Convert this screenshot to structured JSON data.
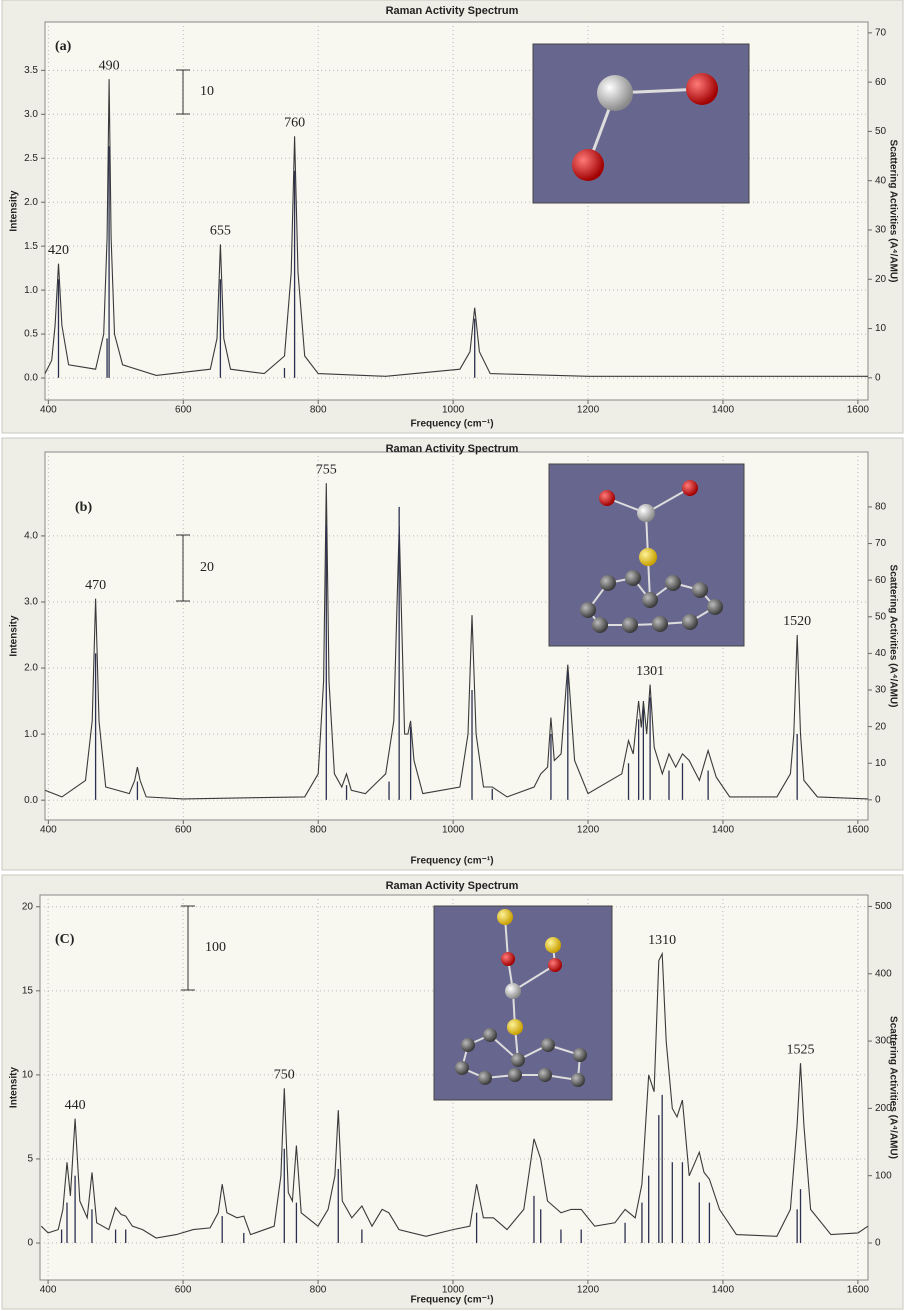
{
  "chart_data": [
    {
      "type": "line",
      "title": "Raman Activity Spectrum",
      "panel_label": "(a)",
      "scale_bar_label": "10",
      "x_label": "Frequency (cm⁻¹)",
      "y_label": "Intensity",
      "y2_label": "Scattering Activities (A⁴/AMU)",
      "xlim": [
        395,
        1615
      ],
      "ylim": [
        -0.25,
        4.05
      ],
      "y2lim": [
        -4.5,
        72.2
      ],
      "xticks": [
        400,
        600,
        800,
        1000,
        1200,
        1400,
        1600
      ],
      "yticks": [
        {
          "value": 0,
          "label": "0.0"
        },
        {
          "value": 0.5,
          "label": "0.5"
        },
        {
          "value": 1,
          "label": "1.0"
        },
        {
          "value": 1.5,
          "label": "1.5"
        },
        {
          "value": 2,
          "label": "2.0"
        },
        {
          "value": 2.5,
          "label": "2.5"
        },
        {
          "value": 3,
          "label": "3.0"
        },
        {
          "value": 3.5,
          "label": "3.5"
        }
      ],
      "y2ticks": [
        0,
        10,
        20,
        30,
        40,
        50,
        60,
        70
      ],
      "grid": true,
      "series": [
        {
          "type": "line",
          "color": "#3a3a3a",
          "x": [
            395,
            405,
            410,
            415,
            420,
            430,
            470,
            482,
            487,
            490,
            493,
            498,
            510,
            560,
            640,
            650,
            655,
            660,
            670,
            720,
            750,
            760,
            765,
            770,
            780,
            800,
            900,
            1010,
            1025,
            1032,
            1039,
            1055,
            1200,
            1400,
            1615
          ],
          "values": [
            0.05,
            0.2,
            0.6,
            1.3,
            0.6,
            0.15,
            0.1,
            0.5,
            1.6,
            3.4,
            1.6,
            0.5,
            0.15,
            0.03,
            0.1,
            0.45,
            1.52,
            0.45,
            0.1,
            0.05,
            0.25,
            1.2,
            2.75,
            1.2,
            0.25,
            0.05,
            0.02,
            0.1,
            0.3,
            0.8,
            0.3,
            0.05,
            0.02,
            0.02,
            0.02
          ]
        },
        {
          "type": "stick",
          "axis": "y2",
          "color": "#2b3050",
          "x": [
            415,
            487,
            490,
            655,
            750,
            765,
            1032
          ],
          "values": [
            20,
            8,
            47,
            20,
            2,
            42,
            12
          ]
        }
      ],
      "annotations": [
        {
          "text": "420",
          "x": 415,
          "y": 1.3
        },
        {
          "text": "490",
          "x": 490,
          "y": 3.4
        },
        {
          "text": "655",
          "x": 655,
          "y": 1.52
        },
        {
          "text": "760",
          "x": 765,
          "y": 2.75
        }
      ]
    },
    {
      "type": "line",
      "title": "Raman Activity Spectrum",
      "panel_label": "(b)",
      "scale_bar_label": "20",
      "x_label": "Frequency (cm⁻¹)",
      "y_label": "Intensity",
      "y2_label": "Scattering Activities (A⁴/AMU)",
      "xlim": [
        395,
        1615
      ],
      "ylim": [
        -0.3,
        5.27
      ],
      "y2lim": [
        -5.5,
        95
      ],
      "xticks": [
        400,
        600,
        800,
        1000,
        1200,
        1400,
        1600
      ],
      "yticks": [
        {
          "value": 0,
          "label": "0.0"
        },
        {
          "value": 1,
          "label": "1.0"
        },
        {
          "value": 2,
          "label": "2.0"
        },
        {
          "value": 3,
          "label": "3.0"
        },
        {
          "value": 4,
          "label": "4.0"
        }
      ],
      "y2ticks": [
        0,
        10,
        20,
        30,
        40,
        50,
        60,
        70,
        80
      ],
      "grid": true,
      "series": [
        {
          "type": "line",
          "color": "#3a3a3a",
          "x": [
            395,
            420,
            455,
            465,
            470,
            475,
            485,
            520,
            528,
            532,
            536,
            545,
            600,
            780,
            800,
            808,
            812,
            816,
            824,
            835,
            842,
            849,
            870,
            900,
            912,
            920,
            928,
            933,
            937,
            942,
            955,
            1010,
            1022,
            1028,
            1034,
            1045,
            1058,
            1080,
            1120,
            1130,
            1140,
            1145,
            1150,
            1160,
            1170,
            1180,
            1200,
            1250,
            1260,
            1267,
            1275,
            1279,
            1282,
            1287,
            1292,
            1298,
            1310,
            1320,
            1330,
            1340,
            1350,
            1365,
            1378,
            1390,
            1410,
            1480,
            1500,
            1505,
            1510,
            1515,
            1520,
            1540,
            1615
          ],
          "values": [
            0.15,
            0.05,
            0.3,
            1.2,
            3.05,
            1.2,
            0.2,
            0.1,
            0.3,
            0.5,
            0.3,
            0.05,
            0.02,
            0.05,
            0.4,
            1.8,
            4.8,
            1.8,
            0.4,
            0.2,
            0.4,
            0.15,
            0.1,
            0.4,
            1.2,
            4.15,
            1.0,
            1.0,
            1.2,
            0.6,
            0.1,
            0.2,
            1.0,
            2.8,
            1.0,
            0.2,
            0.2,
            0.05,
            0.2,
            0.4,
            0.5,
            1.25,
            0.6,
            0.7,
            2.05,
            0.6,
            0.1,
            0.4,
            0.9,
            0.7,
            1.5,
            1.1,
            1.5,
            1.0,
            1.75,
            0.8,
            0.4,
            0.7,
            0.5,
            0.7,
            0.6,
            0.3,
            0.75,
            0.35,
            0.05,
            0.05,
            0.4,
            1.0,
            2.5,
            1.0,
            0.3,
            0.05,
            0.02
          ]
        },
        {
          "type": "stick",
          "axis": "y2",
          "color": "#2b3050",
          "x": [
            470,
            532,
            812,
            842,
            905,
            920,
            937,
            1028,
            1058,
            1145,
            1170,
            1260,
            1275,
            1282,
            1292,
            1320,
            1340,
            1378,
            1510
          ],
          "values": [
            40,
            5,
            75,
            4,
            5,
            80,
            20,
            30,
            3,
            18,
            35,
            10,
            22,
            25,
            28,
            8,
            10,
            8,
            18
          ]
        }
      ],
      "annotations": [
        {
          "text": "470",
          "x": 470,
          "y": 3.05
        },
        {
          "text": "755",
          "x": 812,
          "y": 4.8
        },
        {
          "text": "1301",
          "x": 1292,
          "y": 1.75
        },
        {
          "text": "1520",
          "x": 1510,
          "y": 2.5
        }
      ]
    },
    {
      "type": "line",
      "title": "Raman Activity Spectrum",
      "panel_label": "(C)",
      "scale_bar_label": "100",
      "x_label": "Frequency (cm⁻¹)",
      "y_label": "Intensity",
      "y2_label": "Scattering Activities (A⁴/AMU)",
      "xlim": [
        388,
        1615
      ],
      "ylim": [
        -2.2,
        20.7
      ],
      "y2lim": [
        -55,
        517
      ],
      "xticks": [
        400,
        600,
        800,
        1000,
        1200,
        1400,
        1600
      ],
      "yticks": [
        0,
        5,
        10,
        15,
        20
      ],
      "y2ticks": [
        0,
        100,
        200,
        300,
        400,
        500
      ],
      "grid": true,
      "series": [
        {
          "type": "line",
          "color": "#3a3a3a",
          "x": [
            390,
            400,
            415,
            422,
            428,
            433,
            440,
            447,
            458,
            465,
            472,
            490,
            500,
            508,
            515,
            525,
            540,
            560,
            590,
            615,
            640,
            652,
            658,
            665,
            680,
            690,
            700,
            735,
            745,
            750,
            756,
            762,
            768,
            775,
            800,
            815,
            825,
            830,
            836,
            850,
            865,
            880,
            895,
            905,
            920,
            960,
            1000,
            1025,
            1035,
            1045,
            1060,
            1080,
            1105,
            1120,
            1130,
            1140,
            1160,
            1175,
            1190,
            1210,
            1240,
            1255,
            1270,
            1280,
            1290,
            1298,
            1305,
            1310,
            1316,
            1325,
            1332,
            1340,
            1350,
            1365,
            1372,
            1380,
            1395,
            1420,
            1480,
            1500,
            1510,
            1515,
            1520,
            1530,
            1560,
            1600,
            1615
          ],
          "values": [
            1.0,
            0.6,
            0.8,
            2.0,
            4.8,
            2.8,
            7.4,
            2.5,
            1.5,
            4.2,
            1.2,
            0.8,
            2.1,
            1.7,
            1.6,
            1.0,
            0.8,
            0.3,
            0.5,
            0.8,
            0.9,
            1.8,
            3.5,
            1.8,
            1.5,
            1.6,
            0.5,
            1.0,
            4.0,
            9.2,
            3.0,
            2.5,
            5.8,
            1.8,
            1.0,
            2.0,
            4.0,
            7.9,
            2.5,
            1.5,
            2.2,
            1.0,
            2.0,
            1.8,
            0.8,
            0.4,
            0.8,
            1.0,
            3.5,
            1.5,
            1.5,
            0.8,
            2.0,
            6.2,
            5.0,
            2.5,
            1.8,
            2.0,
            2.0,
            1.0,
            1.2,
            2.0,
            1.5,
            3.5,
            10.0,
            9.0,
            16.8,
            17.2,
            12.0,
            8.0,
            7.5,
            8.5,
            4.0,
            5.4,
            4.2,
            3.8,
            2.0,
            0.5,
            0.4,
            2.0,
            7.0,
            10.7,
            7.0,
            2.0,
            0.5,
            0.6,
            1.0
          ]
        },
        {
          "type": "stick",
          "axis": "y2",
          "color": "#2b3050",
          "x": [
            420,
            428,
            440,
            465,
            500,
            515,
            658,
            690,
            750,
            768,
            830,
            865,
            1035,
            1120,
            1130,
            1160,
            1190,
            1255,
            1280,
            1290,
            1305,
            1310,
            1325,
            1340,
            1365,
            1380,
            1510,
            1515
          ],
          "values": [
            20,
            60,
            100,
            50,
            20,
            20,
            40,
            15,
            140,
            60,
            110,
            20,
            45,
            70,
            50,
            20,
            20,
            30,
            60,
            100,
            190,
            220,
            120,
            120,
            90,
            60,
            50,
            80
          ]
        }
      ],
      "annotations": [
        {
          "text": "440",
          "x": 440,
          "y": 7.4
        },
        {
          "text": "750",
          "x": 750,
          "y": 9.2
        },
        {
          "text": "1310",
          "x": 1310,
          "y": 17.2
        },
        {
          "text": "1525",
          "x": 1515,
          "y": 10.7
        }
      ]
    }
  ]
}
